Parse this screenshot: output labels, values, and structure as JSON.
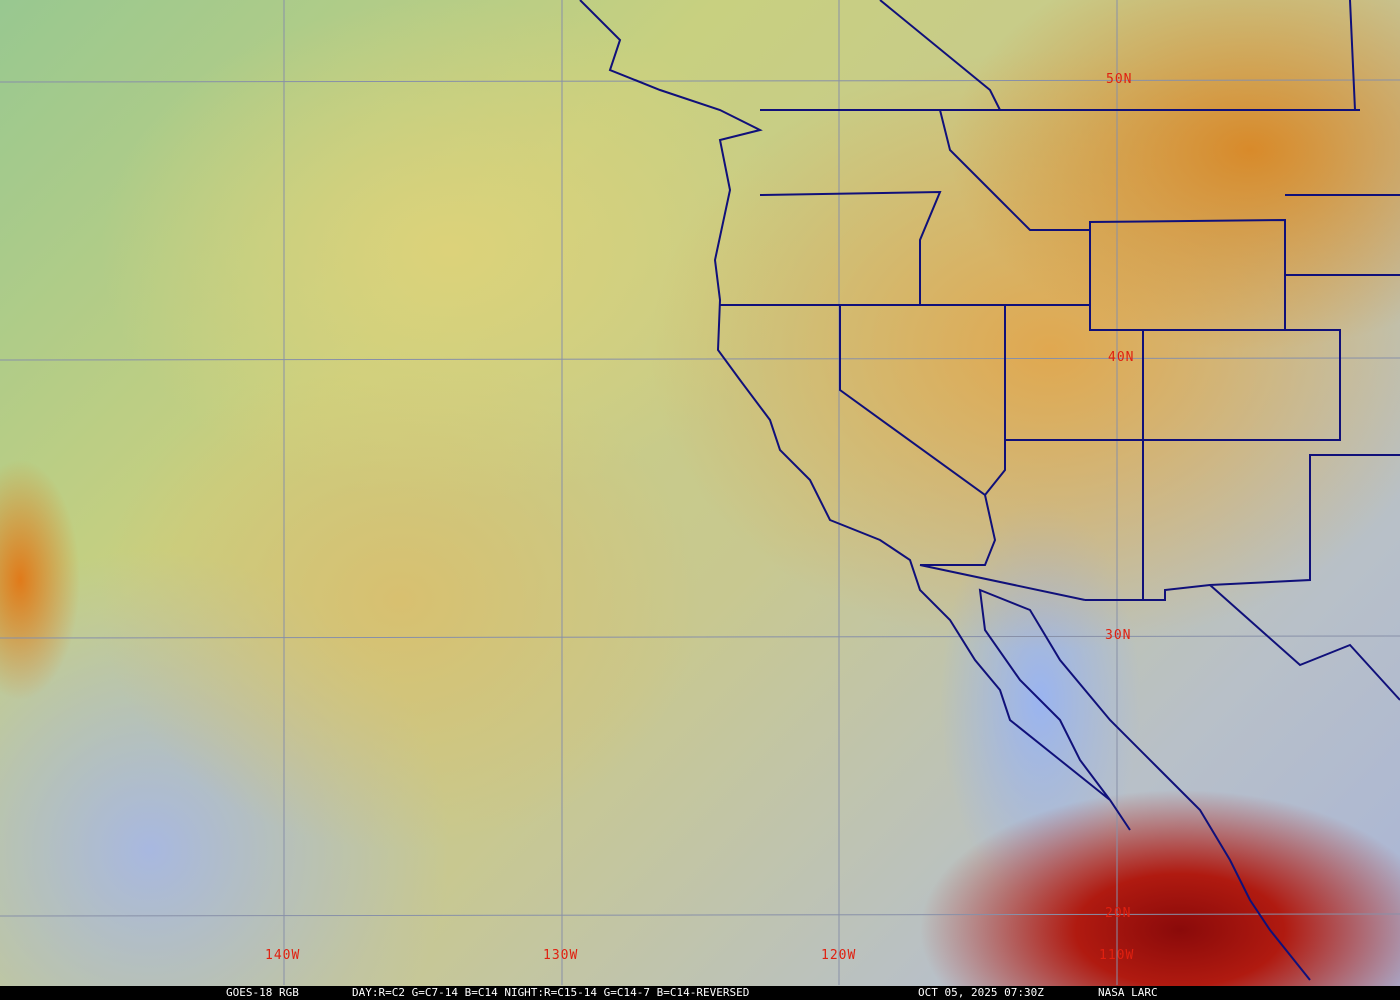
{
  "map": {
    "latitude_labels": [
      "50N",
      "40N",
      "30N",
      "20N"
    ],
    "longitude_labels": [
      "140W",
      "130W",
      "120W",
      "110W"
    ],
    "colors": {
      "grid": "#8890a8",
      "borders": "#10107a",
      "labels": "#e02010"
    }
  },
  "caption": {
    "satellite": "GOES-18 RGB",
    "recipe": "DAY:R=C2 G=C7-14 B=C14 NIGHT:R=C15-14 G=C14-7 B=C14-REVERSED",
    "timestamp": "OCT 05, 2025 07:30Z",
    "credit": "NASA LARC"
  }
}
